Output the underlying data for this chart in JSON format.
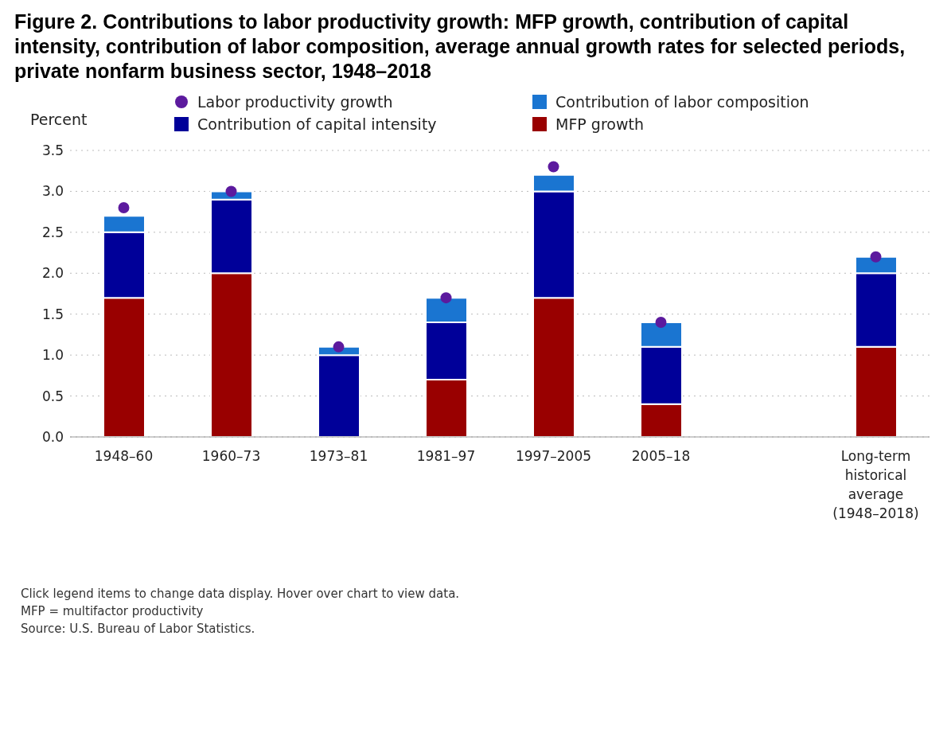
{
  "chart_data": {
    "type": "bar",
    "title": "Figure 2. Contributions to labor productivity growth: MFP growth, contribution of capital intensity, contribution of labor composition, average annual growth rates for selected periods, private nonfarm business sector, 1948–2018",
    "ylabel": "Percent",
    "categories": [
      "1948–60",
      "1960–73",
      "1973–81",
      "1981–97",
      "1997–2005",
      "2005–18",
      null,
      "Long-term historical average (1948–2018)"
    ],
    "stacked": true,
    "series": [
      {
        "name": "MFP growth",
        "color": "#990000",
        "values": [
          1.7,
          2.0,
          0.0,
          0.7,
          1.7,
          0.4,
          null,
          1.1
        ]
      },
      {
        "name": "Contribution of capital intensity",
        "color": "#000099",
        "values": [
          0.8,
          0.9,
          1.0,
          0.7,
          1.3,
          0.7,
          null,
          0.9
        ]
      },
      {
        "name": "Contribution of labor composition",
        "color": "#1a75d1",
        "values": [
          0.2,
          0.1,
          0.1,
          0.3,
          0.2,
          0.3,
          null,
          0.2
        ]
      },
      {
        "name": "Labor productivity growth",
        "type": "scatter",
        "color": "#5c1a9e",
        "values": [
          2.8,
          3.0,
          1.1,
          1.7,
          3.3,
          1.4,
          null,
          2.2
        ]
      }
    ],
    "ylim": [
      0,
      3.5
    ],
    "yticks": [
      {
        "value": 0,
        "label": "0.0"
      },
      {
        "value": 0.5,
        "label": "0.5"
      },
      {
        "value": 1,
        "label": "1.0"
      },
      {
        "value": 1.5,
        "label": "1.5"
      },
      {
        "value": 2,
        "label": "2.0"
      },
      {
        "value": 2.5,
        "label": "2.5"
      },
      {
        "value": 3,
        "label": "3.0"
      },
      {
        "value": 3.5,
        "label": "3.5"
      }
    ],
    "grid": "y",
    "legend": "top",
    "marker": "circle",
    "annotations": [
      "Click legend items to change data display. Hover over chart to view data.",
      "MFP = multifactor productivity",
      "Source: U.S. Bureau of Labor Statistics."
    ]
  }
}
